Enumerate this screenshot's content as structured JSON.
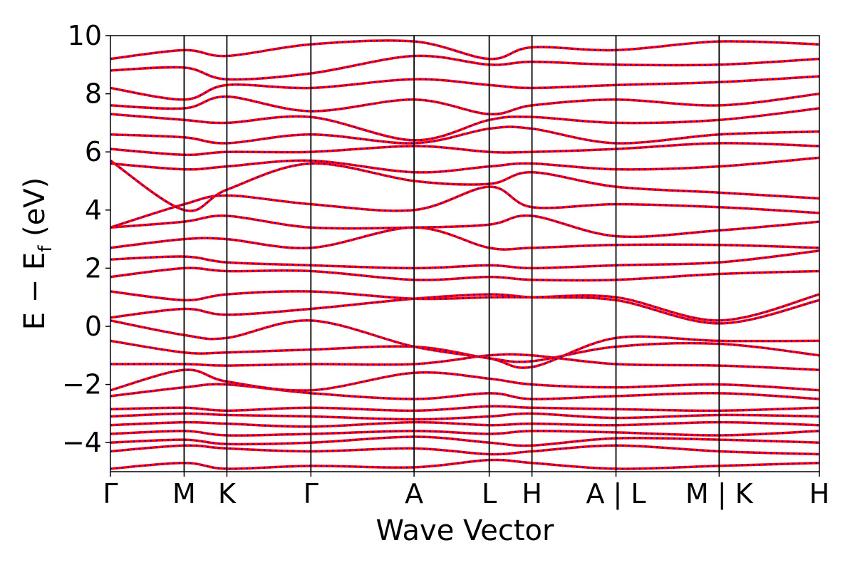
{
  "chart_data": {
    "type": "line",
    "title": "",
    "xlabel": "Wave Vector",
    "ylabel_parts": [
      "E − E",
      "f",
      " (eV)"
    ],
    "ylim": [
      -5,
      10
    ],
    "yticks": [
      10,
      8,
      6,
      4,
      2,
      0,
      -2,
      -4
    ],
    "ytick_labels": [
      "10",
      "8",
      "6",
      "4",
      "2",
      "0",
      "−2",
      "−4"
    ],
    "grid": false,
    "legend": "none",
    "kpoint_positions": [
      0,
      1.0,
      1.58,
      2.72,
      4.12,
      5.14,
      5.72,
      6.86,
      8.26,
      9.62
    ],
    "kpoint_labels": [
      "Γ",
      "M",
      "K",
      "Γ",
      "A",
      "L",
      "H",
      "A | L",
      "M | K",
      "H"
    ],
    "path_breaks": [
      6.86,
      8.26
    ],
    "series": [
      {
        "color": "#ff0000",
        "style": "solid"
      },
      {
        "color": "#0000ff",
        "style": "dotted"
      }
    ],
    "bands": [
      {
        "x": [
          0,
          1.0,
          1.58,
          2.72,
          4.12,
          5.14,
          5.72,
          6.86,
          8.26,
          9.62
        ],
        "y": [
          -4.9,
          -4.7,
          -4.9,
          -4.8,
          -4.85,
          -4.6,
          -4.7,
          -4.9,
          -4.8,
          -4.7
        ]
      },
      {
        "x": [
          0,
          1.0,
          1.58,
          2.72,
          4.12,
          5.14,
          5.72,
          6.86,
          8.26,
          9.62
        ],
        "y": [
          -4.3,
          -4.1,
          -4.2,
          -4.3,
          -4.2,
          -4.4,
          -4.3,
          -4.1,
          -4.3,
          -4.4
        ]
      },
      {
        "x": [
          0,
          1.0,
          1.58,
          2.72,
          4.12,
          5.14,
          5.72,
          6.86,
          8.26,
          9.62
        ],
        "y": [
          -4.0,
          -3.9,
          -4.05,
          -4.0,
          -3.8,
          -4.0,
          -4.1,
          -3.85,
          -3.9,
          -4.0
        ]
      },
      {
        "x": [
          0,
          1.0,
          1.58,
          2.72,
          4.12,
          5.14,
          5.72,
          6.86,
          8.26,
          9.62
        ],
        "y": [
          -3.7,
          -3.6,
          -3.75,
          -3.7,
          -3.6,
          -3.7,
          -3.6,
          -3.65,
          -3.75,
          -3.6
        ]
      },
      {
        "x": [
          0,
          1.0,
          1.58,
          2.72,
          4.12,
          5.14,
          5.72,
          6.86,
          8.26,
          9.62
        ],
        "y": [
          -3.4,
          -3.3,
          -3.35,
          -3.45,
          -3.3,
          -3.4,
          -3.35,
          -3.4,
          -3.3,
          -3.4
        ]
      },
      {
        "x": [
          0,
          1.0,
          1.58,
          2.72,
          4.12,
          5.14,
          5.72,
          6.86,
          8.26,
          9.62
        ],
        "y": [
          -3.1,
          -3.0,
          -3.05,
          -3.1,
          -3.2,
          -3.1,
          -3.0,
          -3.15,
          -3.05,
          -3.1
        ]
      },
      {
        "x": [
          0,
          1.0,
          1.58,
          2.72,
          4.12,
          5.14,
          5.72,
          6.86,
          8.26,
          9.62
        ],
        "y": [
          -2.85,
          -2.8,
          -2.9,
          -2.8,
          -2.9,
          -2.75,
          -2.8,
          -2.85,
          -2.9,
          -2.8
        ]
      },
      {
        "x": [
          0,
          1.0,
          1.58,
          2.72,
          4.12,
          5.14,
          5.72,
          6.86,
          8.26,
          9.62
        ],
        "y": [
          -2.4,
          -2.1,
          -2.0,
          -2.3,
          -2.5,
          -2.3,
          -2.5,
          -2.4,
          -2.3,
          -2.5
        ]
      },
      {
        "x": [
          0,
          1.0,
          1.58,
          2.72,
          4.12,
          5.14,
          5.72,
          6.86,
          8.26,
          9.62
        ],
        "y": [
          -2.2,
          -1.5,
          -1.9,
          -2.2,
          -1.6,
          -1.8,
          -2.0,
          -2.1,
          -2.0,
          -2.2
        ]
      },
      {
        "x": [
          0,
          1.0,
          1.58,
          2.72,
          4.12,
          5.14,
          5.72,
          6.86,
          8.26,
          9.62
        ],
        "y": [
          -1.3,
          -1.3,
          -1.35,
          -1.3,
          -1.3,
          -1.0,
          -1.0,
          -1.3,
          -1.35,
          -1.5
        ]
      },
      {
        "x": [
          0,
          1.0,
          1.58,
          2.72,
          4.12,
          5.14,
          5.72,
          6.86,
          8.26,
          9.62
        ],
        "y": [
          -0.5,
          -0.9,
          -0.9,
          -0.8,
          -0.7,
          -1.1,
          -1.2,
          -0.7,
          -0.6,
          -1.0
        ]
      },
      {
        "x": [
          0,
          1.0,
          1.58,
          2.72,
          4.12,
          5.14,
          5.72,
          6.86,
          8.26,
          9.62
        ],
        "y": [
          0.2,
          -0.3,
          -0.4,
          0.2,
          -0.7,
          -1.1,
          -1.4,
          -0.4,
          -0.5,
          -0.5
        ]
      },
      {
        "x": [
          0,
          1.0,
          1.58,
          2.72,
          4.12,
          5.14,
          5.72,
          6.86,
          8.26,
          9.62
        ],
        "y": [
          0.3,
          0.6,
          0.4,
          0.6,
          0.95,
          1.1,
          1.0,
          0.9,
          0.1,
          0.9
        ]
      },
      {
        "x": [
          0,
          1.0,
          1.58,
          2.72,
          4.12,
          5.14,
          5.72,
          6.86,
          8.26,
          9.62
        ],
        "y": [
          1.2,
          0.9,
          1.1,
          1.2,
          0.95,
          1.0,
          1.0,
          1.0,
          0.2,
          1.1
        ]
      },
      {
        "x": [
          0,
          1.0,
          1.58,
          2.72,
          4.12,
          5.14,
          5.72,
          6.86,
          8.26,
          9.62
        ],
        "y": [
          1.7,
          2.0,
          1.9,
          1.9,
          1.6,
          1.7,
          1.6,
          1.6,
          1.8,
          1.9
        ]
      },
      {
        "x": [
          0,
          1.0,
          1.58,
          2.72,
          4.12,
          5.14,
          5.72,
          6.86,
          8.26,
          9.62
        ],
        "y": [
          2.3,
          2.4,
          2.2,
          2.1,
          2.0,
          2.1,
          2.0,
          2.1,
          2.2,
          2.6
        ]
      },
      {
        "x": [
          0,
          1.0,
          1.58,
          2.72,
          4.12,
          5.14,
          5.72,
          6.86,
          8.26,
          9.62
        ],
        "y": [
          2.7,
          3.0,
          3.0,
          2.7,
          3.4,
          2.7,
          2.7,
          2.8,
          2.8,
          2.7
        ]
      },
      {
        "x": [
          0,
          1.0,
          1.58,
          2.72,
          4.12,
          5.14,
          5.72,
          6.86,
          8.26,
          9.62
        ],
        "y": [
          3.4,
          3.6,
          3.8,
          3.4,
          3.4,
          3.5,
          3.8,
          3.1,
          3.3,
          3.6
        ]
      },
      {
        "x": [
          0,
          1.0,
          1.58,
          2.72,
          4.12,
          5.14,
          5.72,
          6.86,
          8.26,
          9.62
        ],
        "y": [
          3.4,
          4.2,
          4.5,
          4.2,
          4.0,
          4.8,
          4.1,
          4.2,
          4.1,
          3.9
        ]
      },
      {
        "x": [
          0,
          1.0,
          1.58,
          2.72,
          4.12,
          5.14,
          5.72,
          6.86,
          8.26,
          9.62
        ],
        "y": [
          5.7,
          4.0,
          4.7,
          5.6,
          5.0,
          4.9,
          5.3,
          4.8,
          4.6,
          4.4
        ]
      },
      {
        "x": [
          0,
          1.0,
          1.58,
          2.72,
          4.12,
          5.14,
          5.72,
          6.86,
          8.26,
          9.62
        ],
        "y": [
          5.6,
          5.4,
          5.5,
          5.7,
          5.3,
          5.5,
          5.6,
          5.4,
          5.5,
          5.8
        ]
      },
      {
        "x": [
          0,
          1.0,
          1.58,
          2.72,
          4.12,
          5.14,
          5.72,
          6.86,
          8.26,
          9.62
        ],
        "y": [
          6.1,
          5.9,
          6.0,
          6.0,
          6.2,
          6.0,
          6.0,
          6.1,
          6.3,
          6.2
        ]
      },
      {
        "x": [
          0,
          1.0,
          1.58,
          2.72,
          4.12,
          5.14,
          5.72,
          6.86,
          8.26,
          9.62
        ],
        "y": [
          6.6,
          6.5,
          6.3,
          6.6,
          6.3,
          6.8,
          6.8,
          6.3,
          6.6,
          6.7
        ]
      },
      {
        "x": [
          0,
          1.0,
          1.58,
          2.72,
          4.12,
          5.14,
          5.72,
          6.86,
          8.26,
          9.62
        ],
        "y": [
          7.3,
          7.1,
          7.0,
          7.2,
          6.4,
          7.1,
          7.2,
          7.0,
          7.1,
          7.5
        ]
      },
      {
        "x": [
          0,
          1.0,
          1.58,
          2.72,
          4.12,
          5.14,
          5.72,
          6.86,
          8.26,
          9.62
        ],
        "y": [
          7.6,
          7.5,
          7.9,
          7.4,
          7.8,
          7.3,
          7.6,
          7.8,
          7.6,
          8.0
        ]
      },
      {
        "x": [
          0,
          1.0,
          1.58,
          2.72,
          4.12,
          5.14,
          5.72,
          6.86,
          8.26,
          9.62
        ],
        "y": [
          8.2,
          7.8,
          8.3,
          8.2,
          8.5,
          8.3,
          8.2,
          8.3,
          8.4,
          8.6
        ]
      },
      {
        "x": [
          0,
          1.0,
          1.58,
          2.72,
          4.12,
          5.14,
          5.72,
          6.86,
          8.26,
          9.62
        ],
        "y": [
          8.8,
          8.9,
          8.5,
          8.7,
          9.3,
          9.0,
          9.1,
          9.0,
          9.0,
          9.2
        ]
      },
      {
        "x": [
          0,
          1.0,
          1.58,
          2.72,
          4.12,
          5.14,
          5.72,
          6.86,
          8.26,
          9.62
        ],
        "y": [
          9.2,
          9.5,
          9.3,
          9.7,
          9.8,
          9.2,
          9.6,
          9.5,
          9.8,
          9.7
        ]
      }
    ]
  }
}
